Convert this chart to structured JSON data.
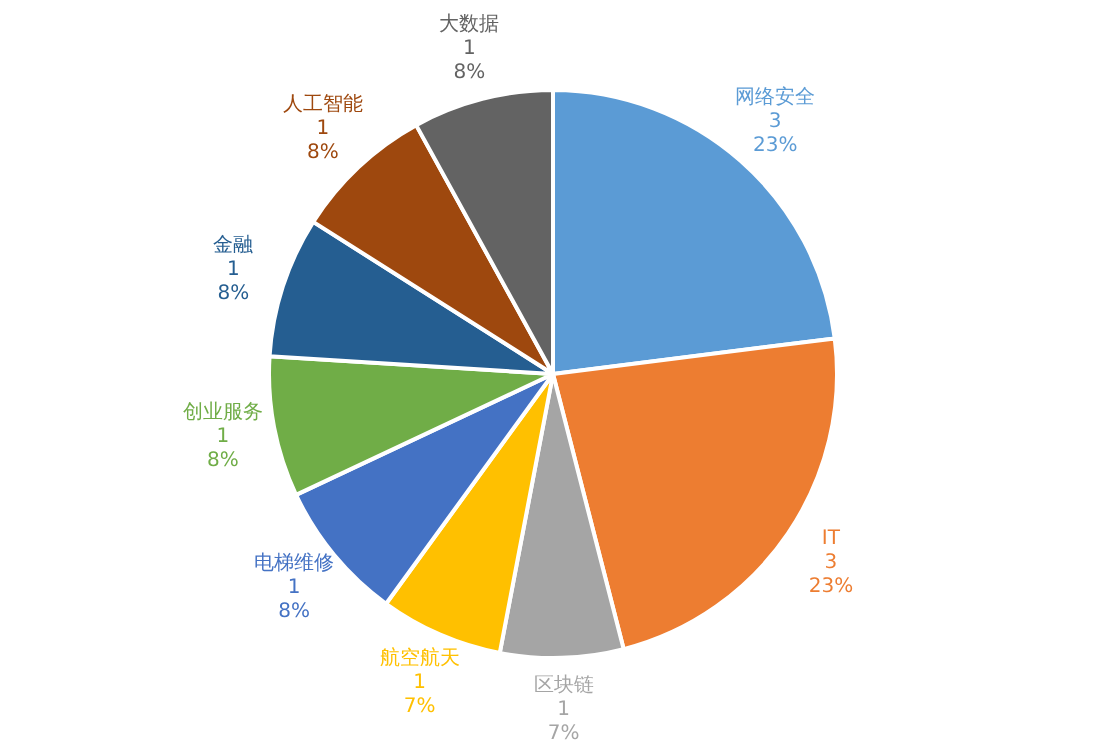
{
  "chart_data": {
    "type": "pie",
    "categories": [
      "网络安全",
      "IT",
      "区块链",
      "航空航天",
      "电梯维修",
      "创业服务",
      "金融",
      "人工智能",
      "大数据"
    ],
    "values": [
      23,
      23,
      7,
      7,
      8,
      8,
      8,
      8,
      8
    ],
    "colors": [
      "#5b9bd5",
      "#ed7d31",
      "#a5a5a5",
      "#ffc000",
      "#4472c4",
      "#70ad47",
      "#255e91",
      "#9e480e",
      "#636363"
    ],
    "value_labels": [
      "3\n23%",
      "3\n23%",
      "1\n7%",
      "1\n7%",
      "1\n8%",
      "1\n8%",
      "1\n8%",
      "1\n8%",
      "1\n8%"
    ],
    "legend": false
  }
}
